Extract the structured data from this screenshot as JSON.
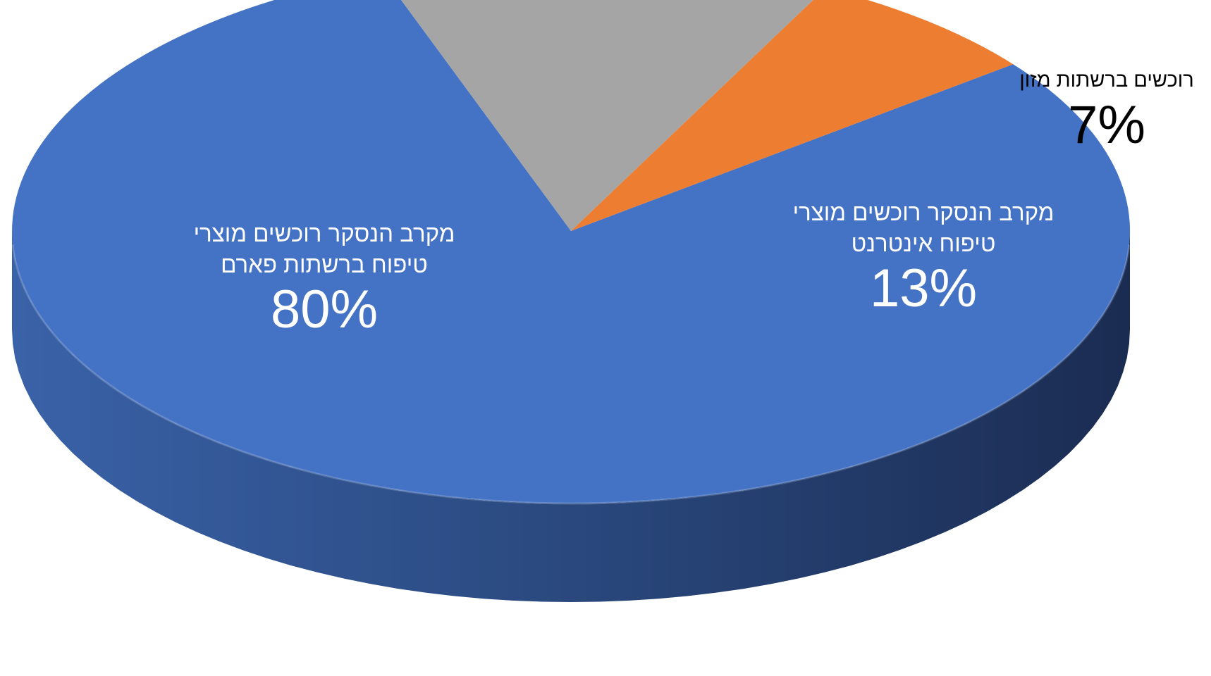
{
  "chart_data": {
    "type": "pie",
    "style": "3d",
    "slices": [
      {
        "label_lines": [
          "מקרב הנסקר רוכשים מוצרי",
          "טיפוח ברשתות פארם"
        ],
        "value": 80,
        "display": "80%",
        "color": "#4472C4"
      },
      {
        "label_lines": [
          "רוכשים ברשתות מזון"
        ],
        "value": 7,
        "display": "7%",
        "color": "#ED7D31"
      },
      {
        "label_lines": [
          "מקרב הנסקר רוכשים מוצרי",
          "טיפוח אינטרנט"
        ],
        "value": 13,
        "display": "13%",
        "color": "#A5A5A5"
      }
    ]
  }
}
